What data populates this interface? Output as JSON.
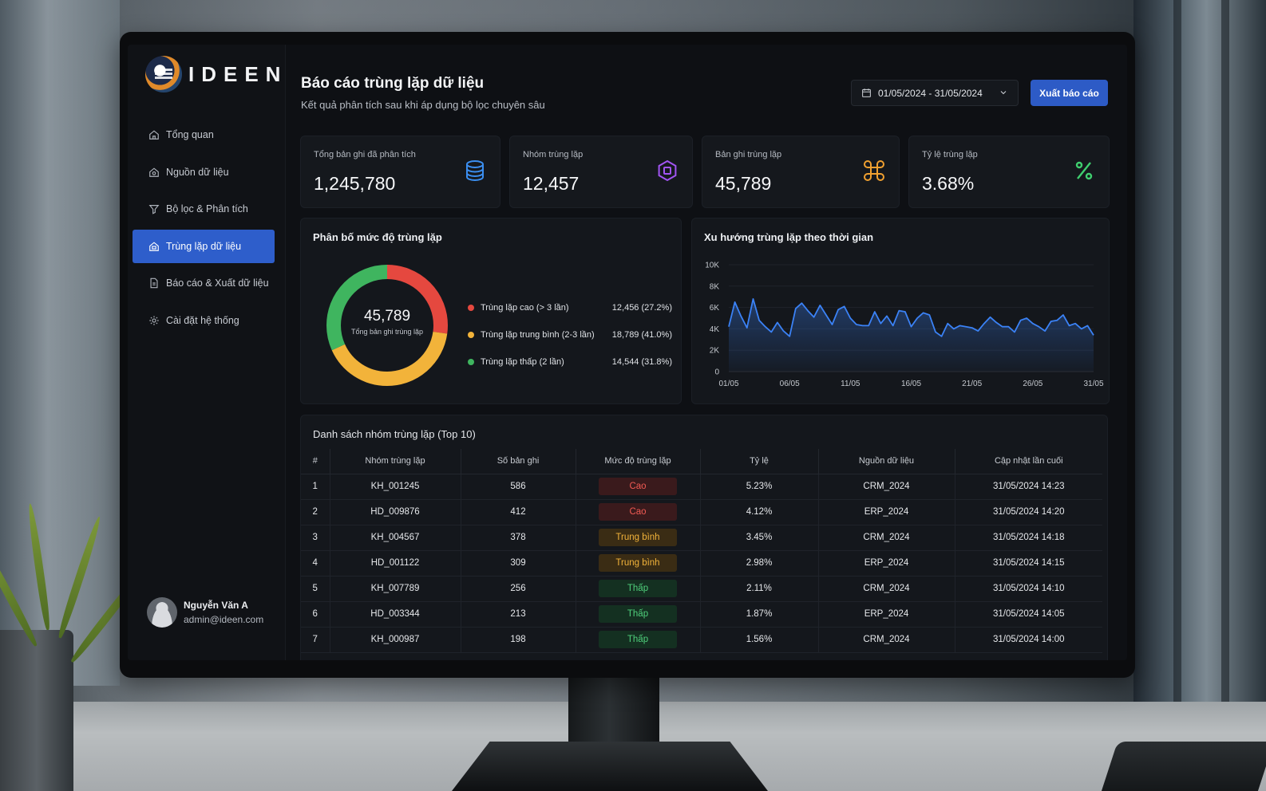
{
  "app": {
    "logo_text": "IDEEN"
  },
  "sidebar": {
    "items": [
      {
        "label": "Tổng quan",
        "icon": "home-icon"
      },
      {
        "label": "Nguồn dữ liệu",
        "icon": "database-icon"
      },
      {
        "label": "Bộ lọc & Phân tích",
        "icon": "filter-icon"
      },
      {
        "label": "Trùng lặp dữ liệu",
        "icon": "duplicate-icon",
        "active": true
      },
      {
        "label": "Báo cáo & Xuất dữ liệu",
        "icon": "report-icon"
      },
      {
        "label": "Cài đặt hệ thống",
        "icon": "gear-icon"
      }
    ],
    "user": {
      "name": "Nguyễn Văn A",
      "email": "admin@ideen.com"
    }
  },
  "header": {
    "title": "Báo cáo trùng lặp dữ liệu",
    "subtitle": "Kết quả phân tích sau khi áp dụng bộ lọc chuyên sâu",
    "date_range": "01/05/2024 - 31/05/2024",
    "export_label": "Xuất báo cáo"
  },
  "kpis": [
    {
      "label": "Tổng bản ghi đã phân tích",
      "value": "1,245,780",
      "icon": "database-stack-icon",
      "color": "#3b8ef0"
    },
    {
      "label": "Nhóm trùng lặp",
      "value": "12,457",
      "icon": "group-icon",
      "color": "#a154f2"
    },
    {
      "label": "Bản ghi trùng lặp",
      "value": "45,789",
      "icon": "command-icon",
      "color": "#f0a030"
    },
    {
      "label": "Tỷ lệ trùng lặp",
      "value": "3.68%",
      "icon": "percent-icon",
      "color": "#3fcf6f"
    }
  ],
  "distribution": {
    "title": "Phân bố mức độ trùng lặp",
    "center_value": "45,789",
    "center_caption": "Tổng bản ghi trùng lặp",
    "items": [
      {
        "label": "Trùng lặp cao (> 3 lần)",
        "value_text": "12,456 (27.2%)",
        "value": 12456,
        "color": "#e5483f"
      },
      {
        "label": "Trùng lặp trung bình (2-3 lần)",
        "value_text": "18,789 (41.0%)",
        "value": 18789,
        "color": "#f2b33a"
      },
      {
        "label": "Trùng lặp thấp (2 lần)",
        "value_text": "14,544 (31.8%)",
        "value": 14544,
        "color": "#3fb55f"
      }
    ]
  },
  "trend": {
    "title": "Xu hướng trùng lặp theo thời gian"
  },
  "chart_data": {
    "type": "area",
    "x_ticks": [
      "01/05",
      "06/05",
      "11/05",
      "16/05",
      "21/05",
      "26/05",
      "31/05"
    ],
    "y_ticks": [
      "0",
      "2K",
      "4K",
      "6K",
      "8K",
      "10K"
    ],
    "ylim": [
      0,
      10000
    ],
    "x": [
      1,
      2,
      3,
      4,
      5,
      6,
      7,
      8,
      9,
      10,
      11,
      12,
      13,
      14,
      15,
      16,
      17,
      18,
      19,
      20,
      21,
      22,
      23,
      24,
      25,
      26,
      27,
      28,
      29,
      30,
      31,
      32,
      33,
      34,
      35,
      36,
      37,
      38,
      39,
      40,
      41,
      42,
      43,
      44,
      45,
      46,
      47,
      48,
      49,
      50,
      51,
      52,
      53,
      54,
      55,
      56,
      57,
      58,
      59,
      60,
      61
    ],
    "values": [
      4200,
      6500,
      5200,
      4100,
      6800,
      4800,
      4200,
      3700,
      4600,
      3800,
      3300,
      5900,
      6400,
      5700,
      5100,
      6200,
      5300,
      4400,
      5800,
      6100,
      5000,
      4400,
      4300,
      4300,
      5600,
      4500,
      5200,
      4300,
      5700,
      5600,
      4200,
      5000,
      5500,
      5300,
      3700,
      3300,
      4500,
      4000,
      4300,
      4200,
      4100,
      3800,
      4500,
      5100,
      4600,
      4200,
      4200,
      3700,
      4800,
      5000,
      4500,
      4200,
      3800,
      4700,
      4800,
      5300,
      4300,
      4500,
      4000,
      4300,
      3400
    ],
    "color": "#3b82f6"
  },
  "table": {
    "title": "Danh sách nhóm trùng lặp (Top 10)",
    "columns": [
      "#",
      "Nhóm trùng lặp",
      "Số bản ghi",
      "Mức độ trùng lặp",
      "Tỷ lệ",
      "Nguồn dữ liệu",
      "Cập nhật lần cuối"
    ],
    "rows": [
      {
        "idx": "1",
        "group": "KH_001245",
        "count": "586",
        "level": "Cao",
        "level_class": "high",
        "ratio": "5.23%",
        "source": "CRM_2024",
        "updated": "31/05/2024 14:23"
      },
      {
        "idx": "2",
        "group": "HD_009876",
        "count": "412",
        "level": "Cao",
        "level_class": "high",
        "ratio": "4.12%",
        "source": "ERP_2024",
        "updated": "31/05/2024 14:20"
      },
      {
        "idx": "3",
        "group": "KH_004567",
        "count": "378",
        "level": "Trung bình",
        "level_class": "mid",
        "ratio": "3.45%",
        "source": "CRM_2024",
        "updated": "31/05/2024 14:18"
      },
      {
        "idx": "4",
        "group": "HD_001122",
        "count": "309",
        "level": "Trung bình",
        "level_class": "mid",
        "ratio": "2.98%",
        "source": "ERP_2024",
        "updated": "31/05/2024 14:15"
      },
      {
        "idx": "5",
        "group": "KH_007789",
        "count": "256",
        "level": "Thấp",
        "level_class": "low",
        "ratio": "2.11%",
        "source": "CRM_2024",
        "updated": "31/05/2024 14:10"
      },
      {
        "idx": "6",
        "group": "HD_003344",
        "count": "213",
        "level": "Thấp",
        "level_class": "low",
        "ratio": "1.87%",
        "source": "ERP_2024",
        "updated": "31/05/2024 14:05"
      },
      {
        "idx": "7",
        "group": "KH_000987",
        "count": "198",
        "level": "Thấp",
        "level_class": "low",
        "ratio": "1.56%",
        "source": "CRM_2024",
        "updated": "31/05/2024 14:00"
      }
    ]
  }
}
